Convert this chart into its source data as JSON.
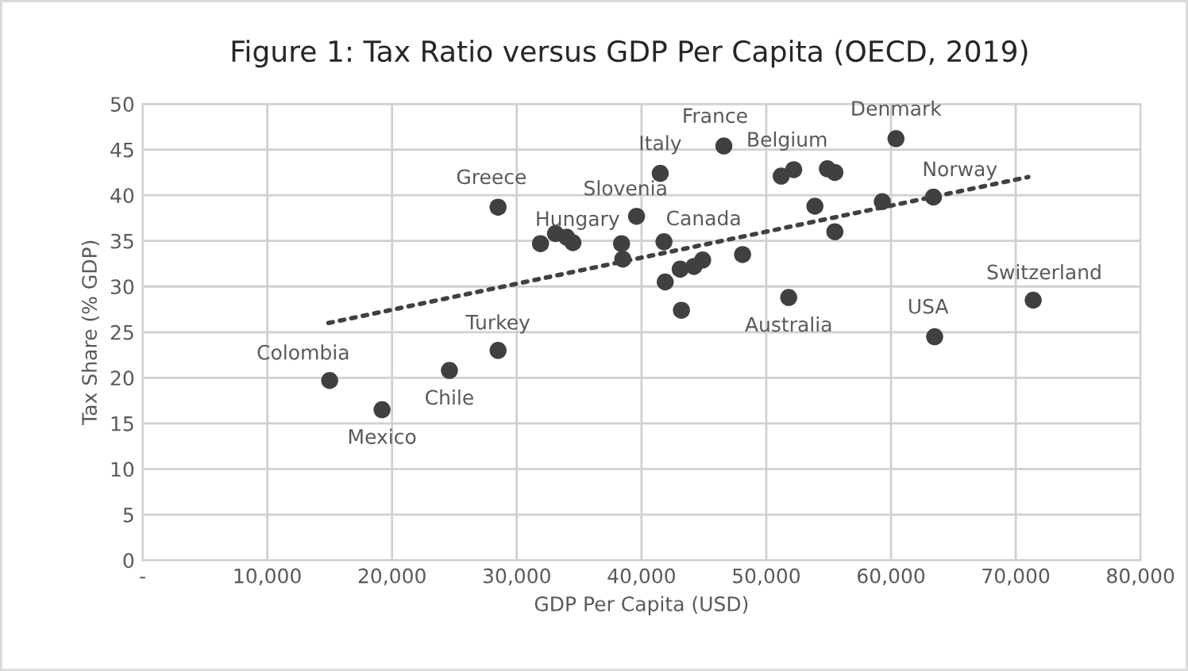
{
  "chart_data": {
    "type": "scatter",
    "title": "Figure 1: Tax Ratio versus GDP Per Capita (OECD, 2019)",
    "xlabel": "GDP Per Capita (USD)",
    "ylabel": "Tax Share (% GDP)",
    "xlim": [
      0,
      80000
    ],
    "ylim": [
      0,
      50
    ],
    "xticks": [
      {
        "value": 0,
        "label": "-"
      },
      {
        "value": 10000,
        "label": "10,000"
      },
      {
        "value": 20000,
        "label": "20,000"
      },
      {
        "value": 30000,
        "label": "30,000"
      },
      {
        "value": 40000,
        "label": "40,000"
      },
      {
        "value": 50000,
        "label": "50,000"
      },
      {
        "value": 60000,
        "label": "60,000"
      },
      {
        "value": 70000,
        "label": "70,000"
      },
      {
        "value": 80000,
        "label": "80,000"
      }
    ],
    "yticks": [
      0,
      5,
      10,
      15,
      20,
      25,
      30,
      35,
      40,
      45,
      50
    ],
    "grid": true,
    "marker": "circle",
    "series": [
      {
        "color": "#404040",
        "x": [
          15000,
          19200,
          24600,
          28500,
          28500,
          31900,
          33100,
          34000,
          34500,
          38400,
          38500,
          39600,
          41500,
          41800,
          41900,
          43200,
          43100,
          44200,
          44900,
          48100,
          46600,
          51200,
          52200,
          54900,
          55500,
          53900,
          55500,
          51800,
          59300,
          60400,
          63400,
          63500,
          71400
        ],
        "values": [
          19.7,
          16.5,
          20.8,
          23.0,
          38.7,
          34.7,
          35.8,
          35.4,
          34.8,
          34.7,
          33.0,
          37.7,
          42.4,
          34.9,
          30.5,
          27.4,
          31.9,
          32.2,
          32.9,
          33.5,
          45.4,
          42.1,
          42.8,
          42.9,
          42.5,
          38.8,
          36.0,
          28.8,
          39.3,
          46.2,
          39.8,
          24.5,
          28.5
        ]
      },
      {
        "type": "line",
        "color": "#404040",
        "line_style": "dotted",
        "marker": "none",
        "x": [
          14900,
          71000
        ],
        "values": [
          26.0,
          42.0
        ]
      }
    ],
    "annotations": [
      {
        "text": "Colombia",
        "x": 15000,
        "y": 19.7
      },
      {
        "text": "Mexico",
        "x": 19200,
        "y": 16.5
      },
      {
        "text": "Chile",
        "x": 24600,
        "y": 20.8
      },
      {
        "text": "Turkey",
        "x": 28500,
        "y": 23.0
      },
      {
        "text": "Greece",
        "x": 28500,
        "y": 38.7
      },
      {
        "text": "Hungary",
        "x": 33100,
        "y": 35.8
      },
      {
        "text": "Slovenia",
        "x": 39600,
        "y": 37.7
      },
      {
        "text": "Italy",
        "x": 41500,
        "y": 42.4
      },
      {
        "text": "Canada",
        "x": 41800,
        "y": 34.9
      },
      {
        "text": "France",
        "x": 46600,
        "y": 45.4
      },
      {
        "text": "Belgium",
        "x": 52200,
        "y": 42.8
      },
      {
        "text": "Denmark",
        "x": 60400,
        "y": 46.2
      },
      {
        "text": "Norway",
        "x": 63400,
        "y": 39.8
      },
      {
        "text": "Australia",
        "x": 51800,
        "y": 28.8
      },
      {
        "text": "USA",
        "x": 63500,
        "y": 24.5
      },
      {
        "text": "Switzerland",
        "x": 71400,
        "y": 28.5
      }
    ]
  }
}
